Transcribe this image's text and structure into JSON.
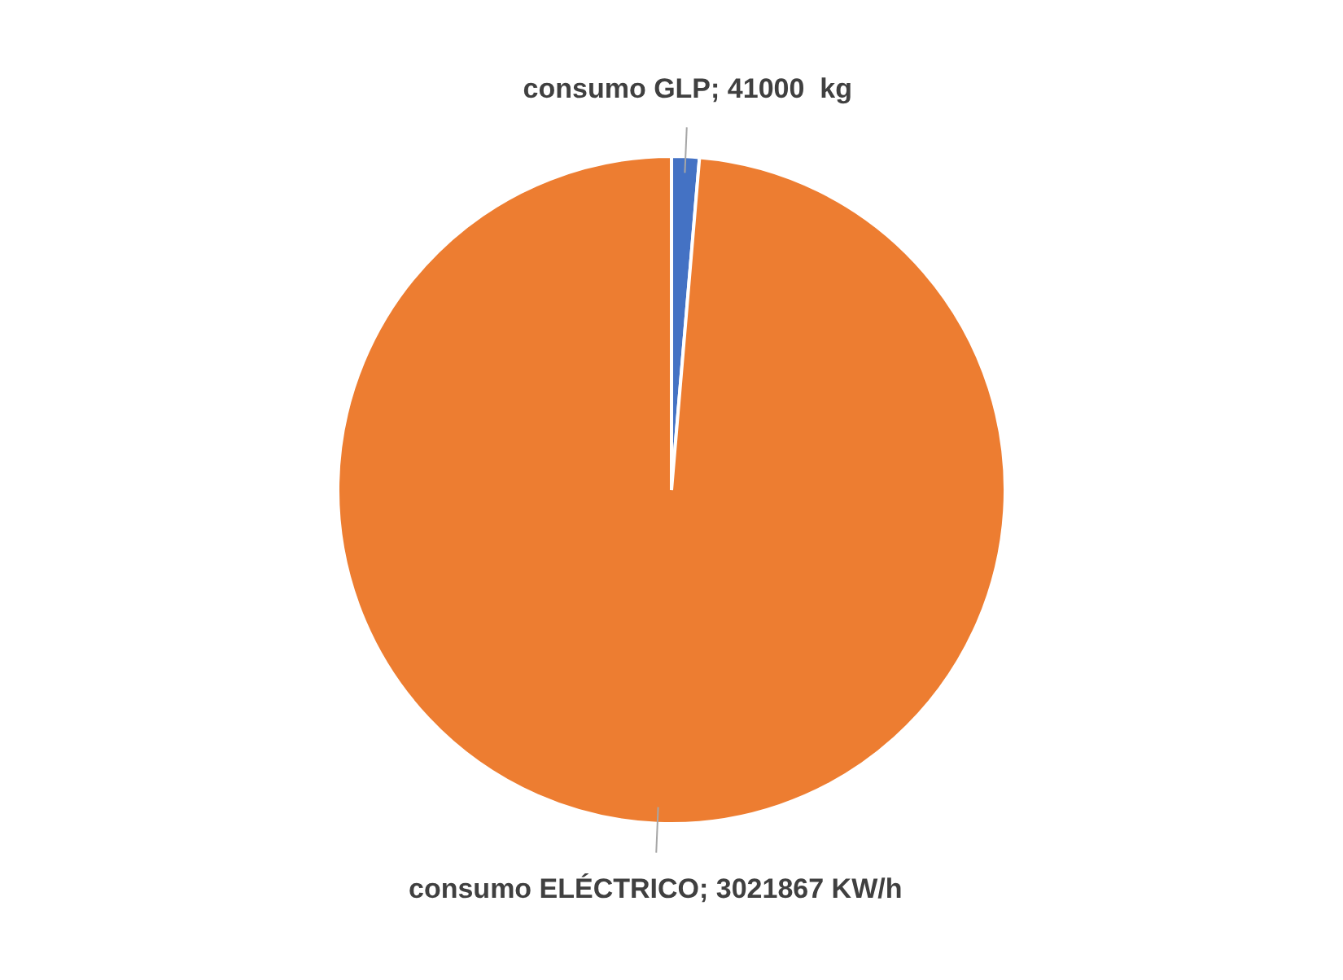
{
  "chart_data": {
    "type": "pie",
    "categories": [
      "consumo GLP",
      "consumo ELÉCTRICO"
    ],
    "values": [
      41000,
      3021867
    ],
    "colors": [
      "#4472c4",
      "#ed7d31"
    ],
    "value_labels": [
      "41000  kg",
      "3021867 KW/h"
    ],
    "legend": false
  }
}
